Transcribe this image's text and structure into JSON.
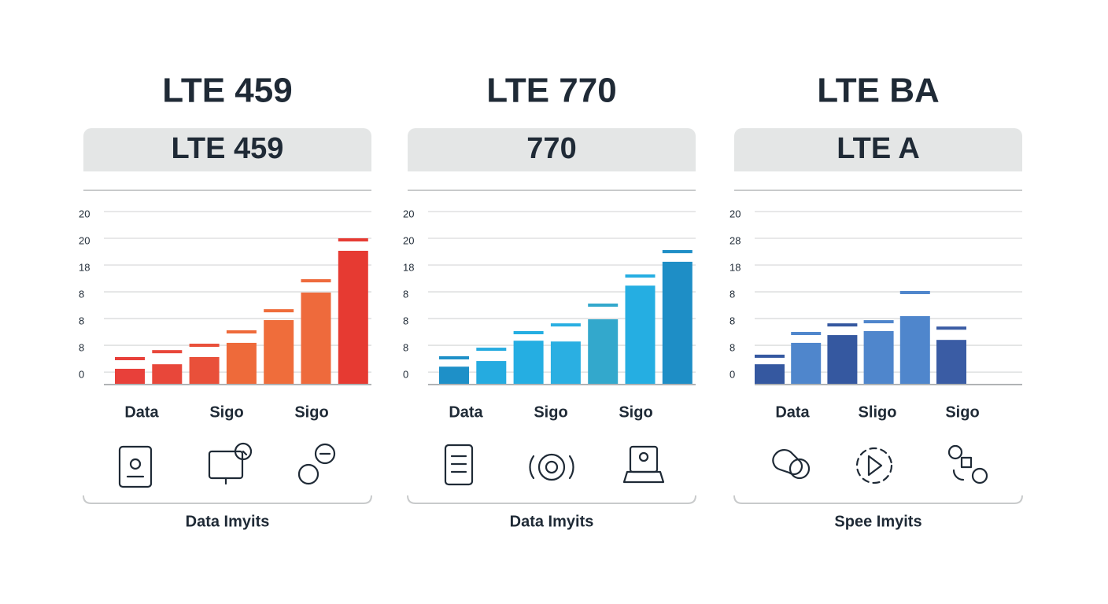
{
  "chart_data": [
    {
      "type": "bar",
      "title": "LTE 459",
      "subtitle": "LTE 459",
      "values": [
        0.24,
        0.41,
        0.68,
        1.21,
        2.06,
        3.09,
        4.65
      ],
      "marker_values": [
        0.62,
        0.88,
        1.12,
        1.62,
        2.41,
        3.53,
        5.06
      ],
      "colors": [
        "#e8403a",
        "#e8473a",
        "#e9503a",
        "#ee6a3a",
        "#ef6d3b",
        "#ee6a3c",
        "#e63a32"
      ],
      "ylim": [
        -0.35,
        6
      ],
      "yticks": [
        {
          "value": 0,
          "label": "0"
        },
        {
          "value": 1,
          "label": "8"
        },
        {
          "value": 2,
          "label": "8"
        },
        {
          "value": 3,
          "label": "8"
        },
        {
          "value": 4,
          "label": "18"
        },
        {
          "value": 5,
          "label": "20"
        },
        {
          "value": 6,
          "label": "20"
        }
      ],
      "grid": true,
      "x_labels": [
        "Data",
        "Sigo",
        "Sigo"
      ],
      "xlabel": "Data Imyits"
    },
    {
      "type": "bar",
      "title": "LTE 770",
      "subtitle": "770",
      "values": [
        0.32,
        0.53,
        1.29,
        1.26,
        2.09,
        3.35,
        4.24
      ],
      "marker_values": [
        0.65,
        0.97,
        1.59,
        1.88,
        2.62,
        3.71,
        4.62
      ],
      "colors": [
        "#1e90c8",
        "#25abe0",
        "#25aee2",
        "#2aafe2",
        "#33a8cc",
        "#25aee2",
        "#1e8ec6"
      ],
      "ylim": [
        -0.35,
        6
      ],
      "yticks": [
        {
          "value": 0,
          "label": "0"
        },
        {
          "value": 1,
          "label": "8"
        },
        {
          "value": 2,
          "label": "8"
        },
        {
          "value": 3,
          "label": "8"
        },
        {
          "value": 4,
          "label": "18"
        },
        {
          "value": 5,
          "label": "20"
        },
        {
          "value": 6,
          "label": "20"
        }
      ],
      "grid": true,
      "x_labels": [
        "Data",
        "Sigo",
        "Sigo"
      ],
      "xlabel": "Data Imyits"
    },
    {
      "type": "bar",
      "title": "LTE BA",
      "subtitle": "LTE A",
      "values": [
        0.41,
        1.21,
        1.5,
        1.65,
        2.21,
        1.32
      ],
      "marker_values": [
        0.71,
        1.56,
        1.88,
        2.0,
        3.09,
        1.76
      ],
      "colors": [
        "#3558a0",
        "#4f86cc",
        "#3558a0",
        "#4f86cc",
        "#4f86cc",
        "#3a5ca4"
      ],
      "ylim": [
        -0.35,
        6
      ],
      "yticks": [
        {
          "value": 0,
          "label": "0"
        },
        {
          "value": 1,
          "label": "8"
        },
        {
          "value": 2,
          "label": "8"
        },
        {
          "value": 3,
          "label": "8"
        },
        {
          "value": 4,
          "label": "18"
        },
        {
          "value": 5,
          "label": "28"
        },
        {
          "value": 6,
          "label": "20"
        }
      ],
      "grid": true,
      "x_labels": [
        "Data",
        "Sligo",
        "Sigo"
      ],
      "xlabel": "Spee Imyits"
    }
  ]
}
